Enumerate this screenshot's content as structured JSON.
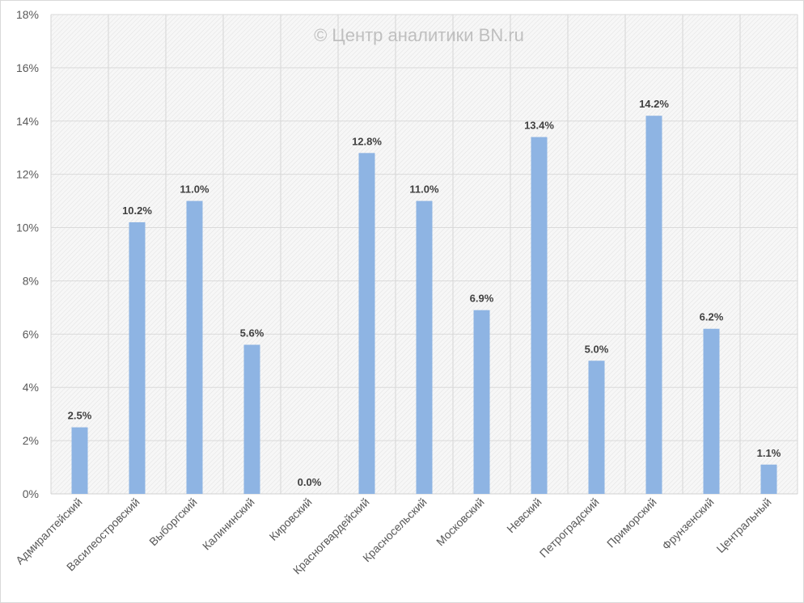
{
  "chart_data": {
    "type": "bar",
    "title": "",
    "watermark": "© Центр аналитики BN.ru",
    "xlabel": "",
    "ylabel": "",
    "ylim": [
      0,
      18
    ],
    "yticks": [
      "0%",
      "2%",
      "4%",
      "6%",
      "8%",
      "10%",
      "12%",
      "14%",
      "16%",
      "18%"
    ],
    "grid": true,
    "legend": "none",
    "bar_color": "#8eb4e3",
    "categories": [
      "Адмиралтейский",
      "Василеостровский",
      "Выборгский",
      "Калининский",
      "Кировский",
      "Красногвардейский",
      "Красносельский",
      "Московский",
      "Невский",
      "Петроградский",
      "Приморский",
      "Фрунзенский",
      "Центральный"
    ],
    "values": [
      2.5,
      10.2,
      11.0,
      5.6,
      0.0,
      12.8,
      11.0,
      6.9,
      13.4,
      5.0,
      14.2,
      6.2,
      1.1
    ],
    "data_labels": [
      "2.5%",
      "10.2%",
      "11.0%",
      "5.6%",
      "0.0%",
      "12.8%",
      "11.0%",
      "6.9%",
      "13.4%",
      "5.0%",
      "14.2%",
      "6.2%",
      "1.1%"
    ]
  }
}
